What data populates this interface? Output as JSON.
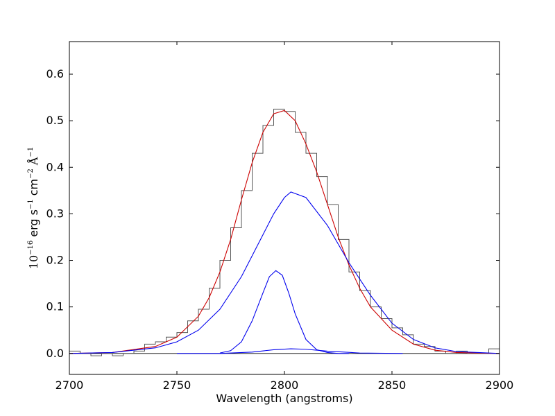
{
  "chart_data": {
    "type": "line",
    "title": "",
    "xlabel": "Wavelength (angstroms)",
    "ylabel": {
      "scale_base": "10",
      "scale_exp": "−16",
      "unit1": "erg s",
      "unit1_exp": "−1",
      "unit2": "cm",
      "unit2_exp": "−2",
      "unit3": "Å",
      "unit3_exp": "−1"
    },
    "xlim": [
      2700,
      2900
    ],
    "ylim": [
      -0.045,
      0.67
    ],
    "xticks": [
      2700,
      2750,
      2800,
      2850,
      2900
    ],
    "yticks": [
      0.0,
      0.1,
      0.2,
      0.3,
      0.4,
      0.5,
      0.6
    ],
    "grid": false,
    "colors": {
      "observed": "#555555",
      "total_fit": "#cc0000",
      "components": "#0000ee",
      "zero_line": "#000000"
    },
    "series": [
      {
        "style": "steps",
        "x": [
          2700,
          2705,
          2710,
          2715,
          2720,
          2725,
          2730,
          2735,
          2740,
          2745,
          2750,
          2755,
          2760,
          2765,
          2770,
          2775,
          2780,
          2785,
          2790,
          2795,
          2800,
          2805,
          2810,
          2815,
          2820,
          2825,
          2830,
          2835,
          2840,
          2845,
          2850,
          2855,
          2860,
          2865,
          2870,
          2875,
          2880,
          2885,
          2890,
          2895,
          2900
        ],
        "y": [
          0.005,
          0.0,
          -0.005,
          0.0,
          -0.005,
          0.0,
          0.005,
          0.02,
          0.025,
          0.035,
          0.045,
          0.07,
          0.095,
          0.14,
          0.2,
          0.27,
          0.35,
          0.43,
          0.49,
          0.525,
          0.52,
          0.475,
          0.43,
          0.38,
          0.32,
          0.245,
          0.175,
          0.135,
          0.1,
          0.075,
          0.055,
          0.04,
          0.02,
          0.015,
          0.005,
          0.0,
          0.005,
          0.0,
          0.0,
          0.01,
          0.0
        ]
      },
      {
        "style": "line",
        "x": [
          2700,
          2720,
          2740,
          2750,
          2760,
          2765,
          2770,
          2775,
          2780,
          2785,
          2790,
          2795,
          2800,
          2805,
          2810,
          2815,
          2820,
          2825,
          2830,
          2835,
          2840,
          2850,
          2860,
          2870,
          2880,
          2900
        ],
        "y": [
          0.0,
          0.002,
          0.015,
          0.035,
          0.08,
          0.12,
          0.175,
          0.245,
          0.33,
          0.41,
          0.475,
          0.515,
          0.522,
          0.5,
          0.45,
          0.39,
          0.32,
          0.25,
          0.19,
          0.14,
          0.1,
          0.05,
          0.02,
          0.007,
          0.002,
          0.0
        ]
      },
      {
        "style": "line",
        "x": [
          2700,
          2720,
          2740,
          2750,
          2760,
          2770,
          2780,
          2790,
          2795,
          2800,
          2803,
          2810,
          2820,
          2830,
          2840,
          2850,
          2860,
          2870,
          2880,
          2900
        ],
        "y": [
          0.0,
          0.002,
          0.012,
          0.025,
          0.05,
          0.095,
          0.165,
          0.255,
          0.3,
          0.335,
          0.347,
          0.335,
          0.275,
          0.195,
          0.125,
          0.065,
          0.03,
          0.012,
          0.004,
          0.0
        ]
      },
      {
        "style": "line",
        "x": [
          2770,
          2775,
          2780,
          2785,
          2790,
          2793,
          2796,
          2799,
          2802,
          2805,
          2810,
          2815,
          2820,
          2825,
          2830
        ],
        "y": [
          0.001,
          0.006,
          0.025,
          0.07,
          0.13,
          0.165,
          0.178,
          0.168,
          0.13,
          0.085,
          0.03,
          0.008,
          0.002,
          0.0,
          0.0
        ]
      },
      {
        "style": "line",
        "x": [
          2750,
          2770,
          2785,
          2795,
          2803,
          2810,
          2820,
          2835,
          2855
        ],
        "y": [
          0.0,
          0.0,
          0.003,
          0.008,
          0.01,
          0.009,
          0.005,
          0.001,
          0.0
        ]
      }
    ]
  }
}
